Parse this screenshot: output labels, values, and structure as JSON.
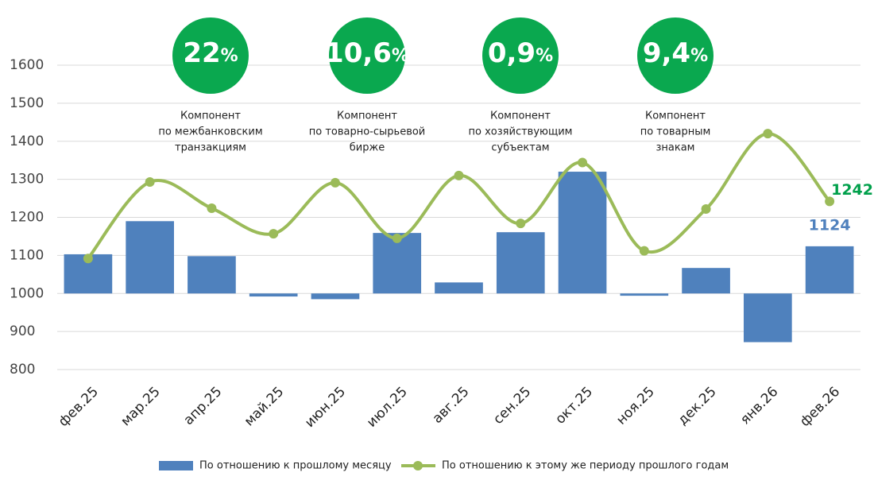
{
  "chart_data": {
    "type": "bar_line",
    "categories": [
      "фев.25",
      "мар.25",
      "апр.25",
      "май.25",
      "июн.25",
      "июл.25",
      "авг.25",
      "сен.25",
      "окт.25",
      "ноя.25",
      "дек.25",
      "янв.26",
      "фев.26"
    ],
    "series": [
      {
        "name": "По отношению к прошлому месяцу",
        "type": "bar",
        "color": "#4f81bd",
        "base": 1000,
        "label_color": "#4f81bd",
        "values": [
          1103,
          1190,
          1098,
          992,
          985,
          1159,
          1029,
          1161,
          1320,
          994,
          1067,
          872,
          1124
        ]
      },
      {
        "name": "По отношению к этому же периоду прошлого годам",
        "type": "line",
        "color": "#9bbb59",
        "label_color": "#00a04b",
        "values": [
          1092,
          1293,
          1224,
          1157,
          1291,
          1145,
          1310,
          1184,
          1344,
          1112,
          1222,
          1420,
          1242
        ]
      }
    ],
    "ylim": [
      800,
      1600
    ],
    "yticks": [
      800,
      900,
      1000,
      1100,
      1200,
      1300,
      1400,
      1500,
      1600
    ],
    "grid": true,
    "annotations": [
      {
        "value": "22",
        "unit": "%",
        "lines": [
          "Компонент",
          "по межбанковским",
          "транзакциям"
        ]
      },
      {
        "value": "10,6",
        "unit": "%",
        "lines": [
          "Компонент",
          "по товарно-сырьевой",
          "бирже"
        ]
      },
      {
        "value": "0,9",
        "unit": "%",
        "lines": [
          "Компонент",
          "по хозяйствующим",
          "субъектам"
        ]
      },
      {
        "value": "9,4",
        "unit": "%",
        "lines": [
          "Компонент",
          "по товарным",
          "знакам"
        ]
      }
    ],
    "annotation_color": "#0aa84f"
  }
}
